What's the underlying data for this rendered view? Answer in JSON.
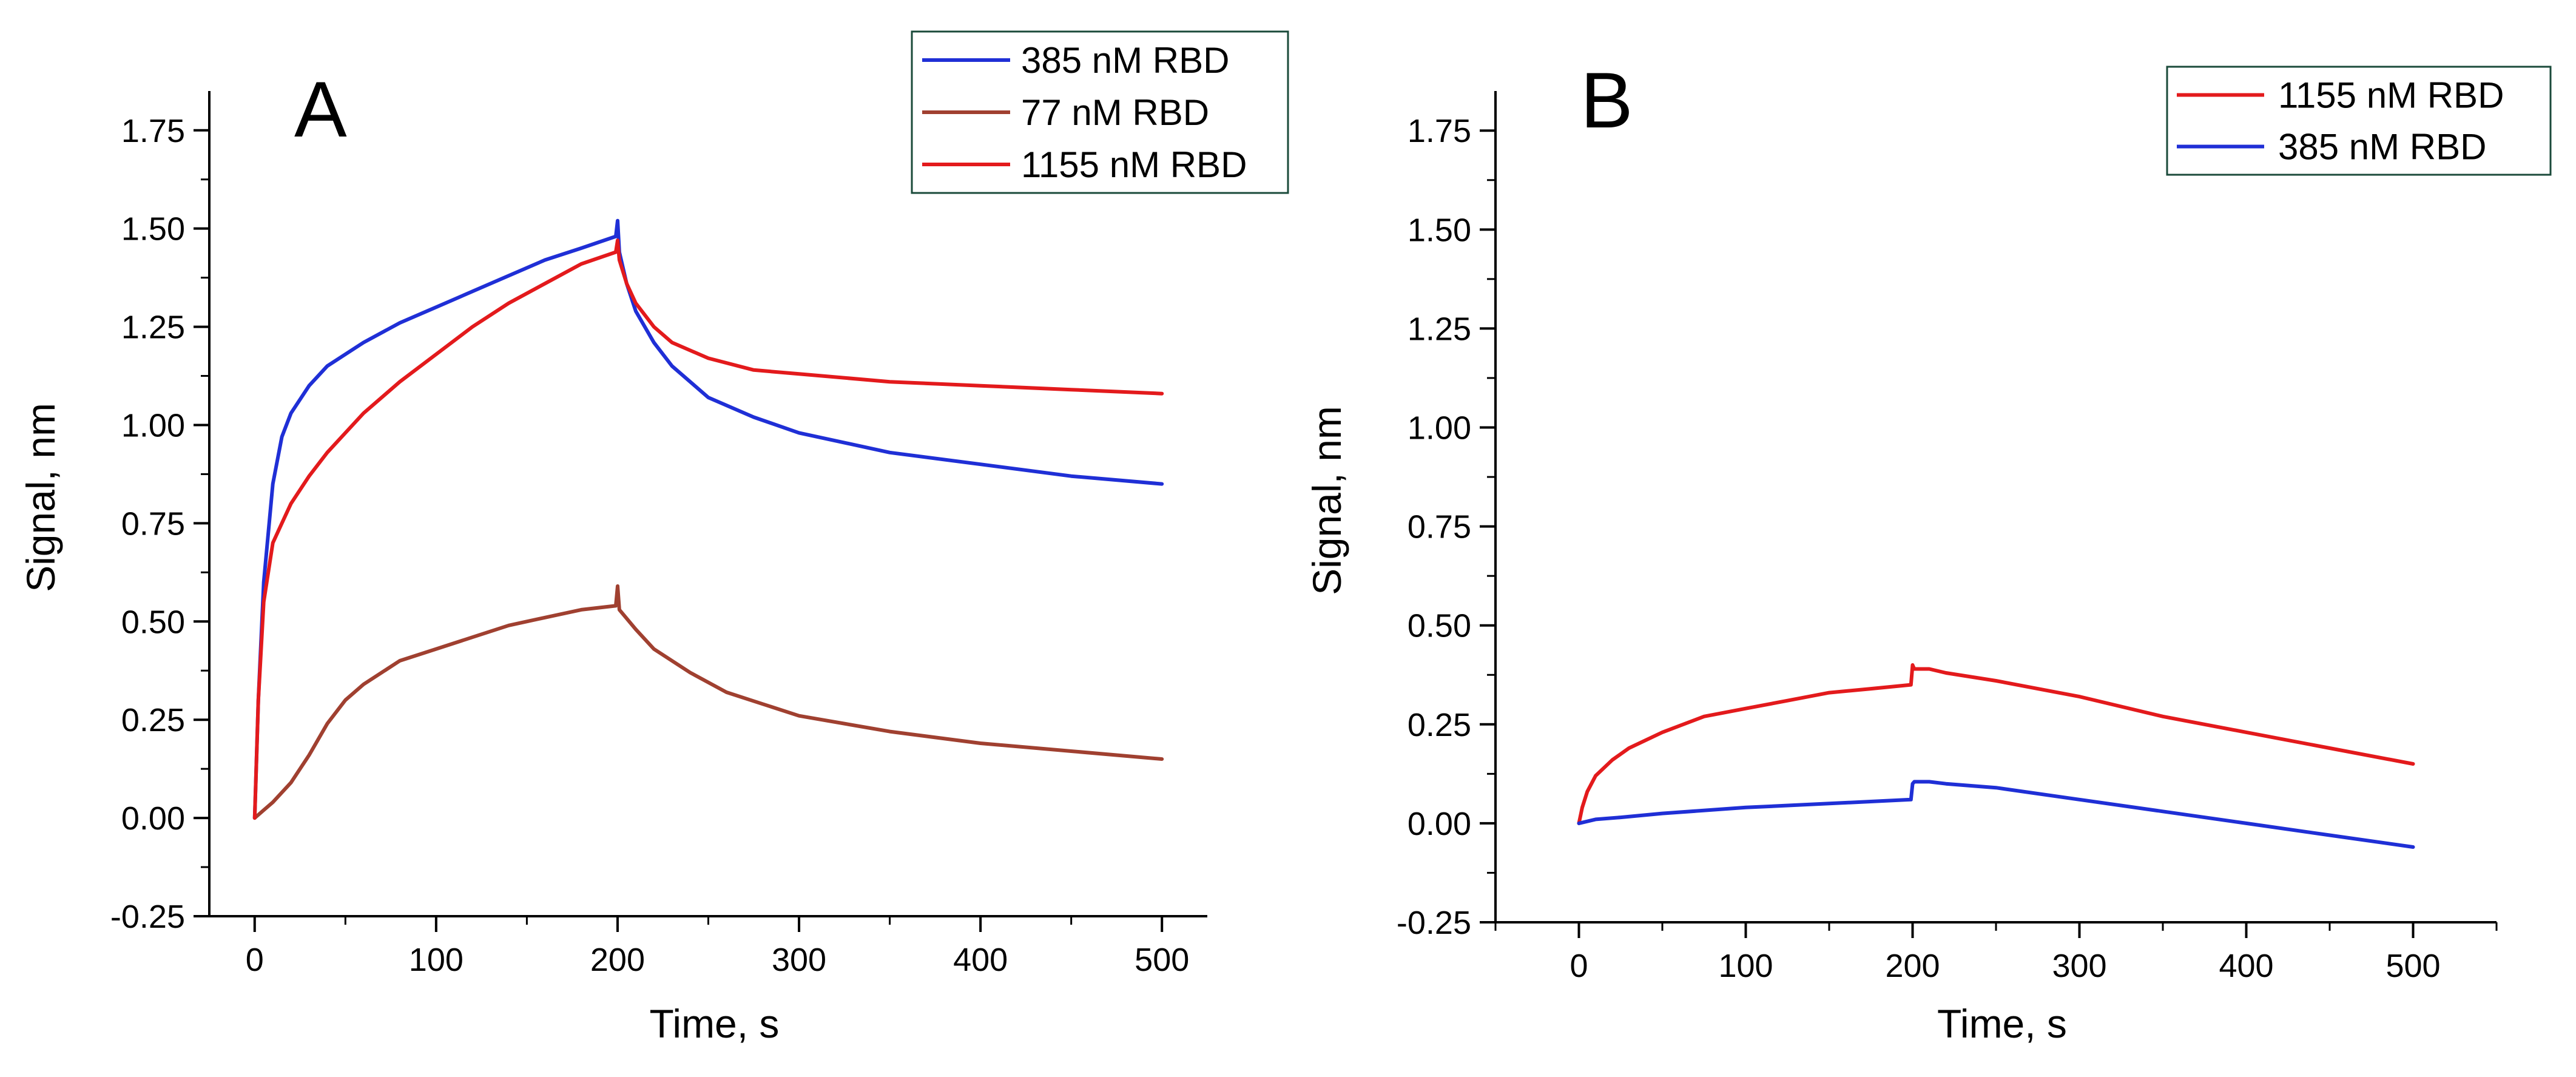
{
  "chart_data": [
    {
      "type": "line",
      "panel_label": "A",
      "xlabel": "Time, s",
      "ylabel": "Signal, nm",
      "xlim": [
        -25,
        525
      ],
      "ylim": [
        -0.25,
        1.85
      ],
      "xticks": [
        0,
        100,
        200,
        300,
        400,
        500
      ],
      "xtick_labels": [
        "0",
        "100",
        "200",
        "300",
        "400",
        "500"
      ],
      "yticks": [
        -0.25,
        0,
        0.25,
        0.5,
        0.75,
        1,
        1.25,
        1.5,
        1.75
      ],
      "ytick_labels": [
        "-0.25",
        "0.00",
        "0.25",
        "0.50",
        "0.75",
        "1.00",
        "1.25",
        "1.50",
        "1.75"
      ],
      "legend_position": "top-right",
      "legend": [
        "385 nM RBD",
        "77 nM RBD",
        "1155 nM RBD"
      ],
      "series": [
        {
          "name": "385 nM RBD",
          "color": "#1f2fd6",
          "x": [
            0,
            2,
            5,
            10,
            15,
            20,
            30,
            40,
            50,
            60,
            80,
            100,
            120,
            140,
            160,
            180,
            199,
            200,
            201,
            205,
            210,
            220,
            230,
            250,
            275,
            300,
            350,
            400,
            450,
            500
          ],
          "y": [
            0.0,
            0.3,
            0.6,
            0.85,
            0.97,
            1.03,
            1.1,
            1.15,
            1.18,
            1.21,
            1.26,
            1.3,
            1.34,
            1.38,
            1.42,
            1.45,
            1.48,
            1.52,
            1.44,
            1.36,
            1.29,
            1.21,
            1.15,
            1.07,
            1.02,
            0.98,
            0.93,
            0.9,
            0.87,
            0.85
          ]
        },
        {
          "name": "77 nM RBD",
          "color": "#a04030",
          "x": [
            0,
            5,
            10,
            20,
            30,
            40,
            50,
            60,
            80,
            100,
            120,
            140,
            160,
            180,
            199,
            200,
            201,
            210,
            220,
            240,
            260,
            280,
            300,
            350,
            400,
            450,
            500
          ],
          "y": [
            0.0,
            0.02,
            0.04,
            0.09,
            0.16,
            0.24,
            0.3,
            0.34,
            0.4,
            0.43,
            0.46,
            0.49,
            0.51,
            0.53,
            0.54,
            0.59,
            0.53,
            0.48,
            0.43,
            0.37,
            0.32,
            0.29,
            0.26,
            0.22,
            0.19,
            0.17,
            0.15
          ]
        },
        {
          "name": "1155 nM RBD",
          "color": "#e31a1c",
          "x": [
            0,
            2,
            5,
            10,
            15,
            20,
            30,
            40,
            50,
            60,
            80,
            100,
            120,
            140,
            160,
            180,
            199,
            200,
            201,
            205,
            210,
            220,
            230,
            250,
            275,
            300,
            350,
            400,
            450,
            500
          ],
          "y": [
            0.0,
            0.3,
            0.55,
            0.7,
            0.75,
            0.8,
            0.87,
            0.93,
            0.98,
            1.03,
            1.11,
            1.18,
            1.25,
            1.31,
            1.36,
            1.41,
            1.44,
            1.47,
            1.42,
            1.36,
            1.31,
            1.25,
            1.21,
            1.17,
            1.14,
            1.13,
            1.11,
            1.1,
            1.09,
            1.08
          ]
        }
      ]
    },
    {
      "type": "line",
      "panel_label": "B",
      "xlabel": "Time, s",
      "ylabel": "Signal, nm",
      "xlim": [
        -50,
        550
      ],
      "ylim": [
        -0.25,
        1.85
      ],
      "xticks": [
        0,
        100,
        200,
        300,
        400,
        500
      ],
      "xtick_labels": [
        "0",
        "100",
        "200",
        "300",
        "400",
        "500"
      ],
      "yticks": [
        -0.25,
        0,
        0.25,
        0.5,
        0.75,
        1,
        1.25,
        1.5,
        1.75
      ],
      "ytick_labels": [
        "-0.25",
        "0.00",
        "0.25",
        "0.50",
        "0.75",
        "1.00",
        "1.25",
        "1.50",
        "1.75"
      ],
      "legend_position": "top-right",
      "legend": [
        "1155 nM RBD",
        "385 nM RBD"
      ],
      "series": [
        {
          "name": "1155 nM RBD",
          "color": "#e31a1c",
          "x": [
            0,
            2,
            5,
            10,
            20,
            30,
            50,
            75,
            100,
            125,
            150,
            175,
            199,
            200,
            201,
            210,
            220,
            250,
            300,
            350,
            400,
            450,
            500
          ],
          "y": [
            0.0,
            0.04,
            0.08,
            0.12,
            0.16,
            0.19,
            0.23,
            0.27,
            0.29,
            0.31,
            0.33,
            0.34,
            0.35,
            0.4,
            0.39,
            0.39,
            0.38,
            0.36,
            0.32,
            0.27,
            0.23,
            0.19,
            0.15
          ]
        },
        {
          "name": "385 nM RBD",
          "color": "#1f2fd6",
          "x": [
            0,
            10,
            25,
            50,
            100,
            150,
            199,
            200,
            201,
            210,
            220,
            250,
            300,
            350,
            400,
            450,
            500
          ],
          "y": [
            0.0,
            0.01,
            0.015,
            0.025,
            0.04,
            0.05,
            0.06,
            0.1,
            0.105,
            0.105,
            0.1,
            0.09,
            0.06,
            0.03,
            0.0,
            -0.03,
            -0.06
          ]
        }
      ]
    }
  ]
}
